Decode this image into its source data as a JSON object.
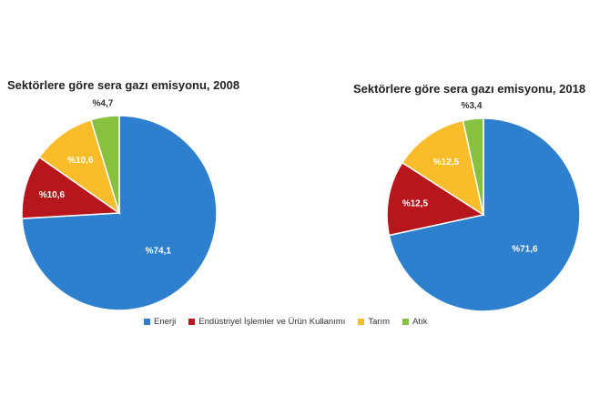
{
  "colors": {
    "energy": "#2E7FCD",
    "industry": "#B7171C",
    "agriculture": "#F9BD2B",
    "waste": "#88C13F"
  },
  "legend": [
    {
      "label": "Enerji",
      "color": "#2E7FCD"
    },
    {
      "label": "Endüstriyel İşlemler ve Ürün Kullanımı",
      "color": "#B7171C"
    },
    {
      "label": "Tarım",
      "color": "#F9BD2B"
    },
    {
      "label": "Atık",
      "color": "#88C13F"
    }
  ],
  "chart_data": [
    {
      "type": "pie",
      "title": "Sektörlere göre sera gazı emisyonu,  2008",
      "categories": [
        "Enerji",
        "Endüstriyel İşlemler ve Ürün Kullanımı",
        "Tarım",
        "Atık"
      ],
      "values": [
        74.1,
        10.6,
        10.6,
        4.7
      ],
      "data_labels": [
        "%74,1",
        "%10,6",
        "%10,6",
        "%4,7"
      ],
      "colors": [
        "#2E7FCD",
        "#B7171C",
        "#F9BD2B",
        "#88C13F"
      ]
    },
    {
      "type": "pie",
      "title": "Sektörlere göre sera gazı emisyonu,  2018",
      "categories": [
        "Enerji",
        "Endüstriyel İşlemler ve Ürün Kullanımı",
        "Tarım",
        "Atık"
      ],
      "values": [
        71.6,
        12.5,
        12.5,
        3.4
      ],
      "data_labels": [
        "%71,6",
        "%12,5",
        "%12,5",
        "%3,4"
      ],
      "colors": [
        "#2E7FCD",
        "#B7171C",
        "#F9BD2B",
        "#88C13F"
      ]
    }
  ]
}
